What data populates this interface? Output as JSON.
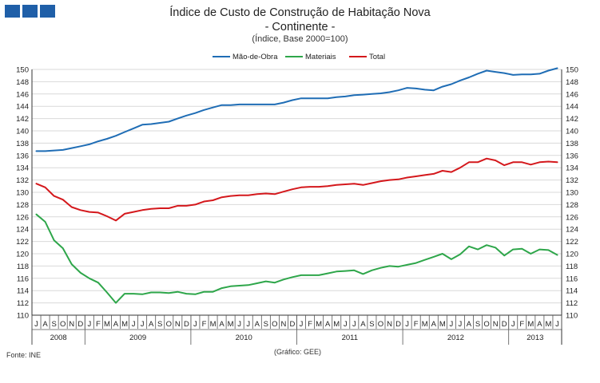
{
  "header": {
    "logo_colors": [
      "#1f5fa8",
      "#1f5fa8",
      "#1f5fa8"
    ],
    "title_line1": "Índice de Custo de Construção de Habitação Nova",
    "title_line2": "- Continente -",
    "subtitle": "(Índice, Base 2000=100)"
  },
  "footer": {
    "source": "Fonte: INE",
    "credit": "(Gráfico: GEE)"
  },
  "chart_data": {
    "type": "line",
    "ylim": [
      110,
      150
    ],
    "yticks": [
      110,
      112,
      114,
      116,
      118,
      120,
      122,
      124,
      126,
      128,
      130,
      132,
      134,
      136,
      138,
      140,
      142,
      144,
      146,
      148,
      150
    ],
    "dual_y_axis": true,
    "grid": "horizontal",
    "legend_position": "top",
    "x_month_labels": [
      "J",
      "A",
      "S",
      "O",
      "N",
      "D",
      "J",
      "F",
      "M",
      "A",
      "M",
      "J",
      "J",
      "A",
      "S",
      "O",
      "N",
      "D",
      "J",
      "F",
      "M",
      "A",
      "M",
      "J",
      "J",
      "A",
      "S",
      "O",
      "N",
      "D",
      "J",
      "F",
      "M",
      "A",
      "M",
      "J",
      "J",
      "A",
      "S",
      "O",
      "N",
      "D",
      "J",
      "F",
      "M",
      "A",
      "M",
      "J",
      "J",
      "A",
      "S",
      "O",
      "N",
      "D",
      "J",
      "F",
      "M",
      "A",
      "M",
      "J"
    ],
    "x_year_groups": [
      {
        "year": "2008",
        "months": 6
      },
      {
        "year": "2009",
        "months": 12
      },
      {
        "year": "2010",
        "months": 12
      },
      {
        "year": "2011",
        "months": 12
      },
      {
        "year": "2012",
        "months": 12
      },
      {
        "year": "2013",
        "months": 6
      }
    ],
    "series": [
      {
        "name": "Mão-de-Obra",
        "color": "#1f6db5",
        "values": [
          136.7,
          136.7,
          136.8,
          136.9,
          137.2,
          137.5,
          137.8,
          138.3,
          138.7,
          139.2,
          139.8,
          140.4,
          141.0,
          141.1,
          141.3,
          141.5,
          142.0,
          142.5,
          142.9,
          143.4,
          143.8,
          144.2,
          144.2,
          144.3,
          144.3,
          144.3,
          144.3,
          144.3,
          144.6,
          145.0,
          145.3,
          145.3,
          145.3,
          145.3,
          145.5,
          145.6,
          145.8,
          145.9,
          146.0,
          146.1,
          146.3,
          146.6,
          147.0,
          146.9,
          146.7,
          146.6,
          147.2,
          147.6,
          148.2,
          148.7,
          149.3,
          149.8,
          149.6,
          149.4,
          149.1,
          149.2,
          149.2,
          149.3,
          149.8,
          150.2
        ]
      },
      {
        "name": "Materiais",
        "color": "#2ea64a",
        "values": [
          126.4,
          125.2,
          122.2,
          120.9,
          118.3,
          116.9,
          116.0,
          115.3,
          113.7,
          112.0,
          113.5,
          113.5,
          113.4,
          113.7,
          113.7,
          113.6,
          113.8,
          113.5,
          113.4,
          113.8,
          113.8,
          114.4,
          114.7,
          114.8,
          114.9,
          115.2,
          115.5,
          115.3,
          115.8,
          116.2,
          116.5,
          116.5,
          116.5,
          116.8,
          117.1,
          117.2,
          117.3,
          116.7,
          117.3,
          117.7,
          118.0,
          117.9,
          118.2,
          118.5,
          119.0,
          119.5,
          120.0,
          119.1,
          119.9,
          121.2,
          120.7,
          121.4,
          121.0,
          119.7,
          120.7,
          120.8,
          120.0,
          120.7,
          120.6,
          119.8
        ]
      },
      {
        "name": "Total",
        "color": "#d4181c",
        "values": [
          131.4,
          130.8,
          129.4,
          128.8,
          127.6,
          127.1,
          126.8,
          126.7,
          126.1,
          125.4,
          126.5,
          126.8,
          127.1,
          127.3,
          127.4,
          127.4,
          127.8,
          127.8,
          128.0,
          128.5,
          128.7,
          129.2,
          129.4,
          129.5,
          129.5,
          129.7,
          129.8,
          129.7,
          130.1,
          130.5,
          130.8,
          130.9,
          130.9,
          131.0,
          131.2,
          131.3,
          131.4,
          131.2,
          131.5,
          131.8,
          132.0,
          132.1,
          132.4,
          132.6,
          132.8,
          133.0,
          133.5,
          133.3,
          134.0,
          134.9,
          134.9,
          135.5,
          135.2,
          134.4,
          134.9,
          134.9,
          134.5,
          134.9,
          135.0,
          134.9
        ]
      }
    ]
  }
}
